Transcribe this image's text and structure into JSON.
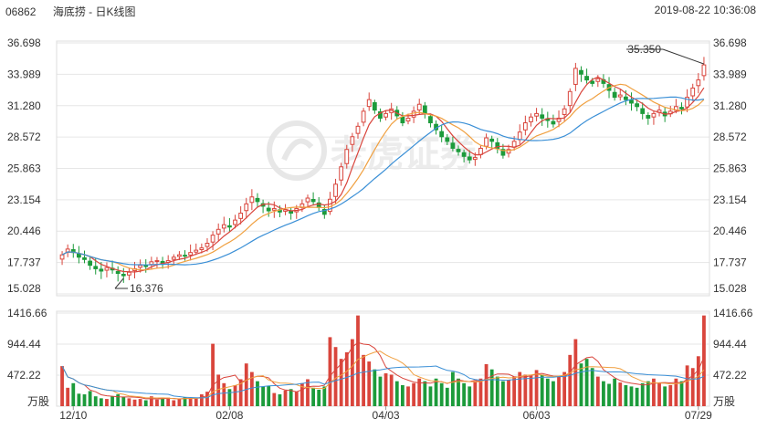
{
  "header": {
    "code": "06862",
    "title": "海底捞 - 日K线图",
    "datetime": "2019-08-22 10:36:08"
  },
  "watermark": {
    "text": "老虎证券"
  },
  "colors": {
    "up": "#d9453c",
    "down": "#1c9b3b",
    "ma_fast": "#d9453c",
    "ma_mid": "#f0a040",
    "ma_slow": "#3a8fd6",
    "grid": "#e6e6e6"
  },
  "chart_data": [
    {
      "type": "candlestick",
      "panel": "price",
      "y_ticks": [
        "36.698",
        "33.989",
        "31.280",
        "28.572",
        "25.863",
        "23.154",
        "20.446",
        "17.737",
        "15.028"
      ],
      "ylim": [
        15.028,
        36.698
      ],
      "x_ticks": [
        "12/10",
        "02/08",
        "04/03",
        "06/03",
        "07/29"
      ],
      "annotations": [
        {
          "label": "35.350",
          "value": 35.35,
          "kind": "high"
        },
        {
          "label": "16.376",
          "value": 16.376,
          "kind": "low"
        }
      ],
      "closes": [
        18.4,
        18.9,
        18.6,
        18.2,
        18.0,
        17.5,
        17.2,
        17.0,
        17.3,
        17.1,
        16.8,
        16.6,
        16.9,
        17.2,
        17.5,
        17.4,
        17.8,
        17.9,
        17.7,
        17.9,
        18.2,
        18.4,
        18.3,
        18.6,
        18.8,
        19.0,
        19.4,
        20.1,
        20.6,
        21.0,
        20.8,
        21.4,
        22.0,
        22.8,
        23.4,
        23.0,
        22.6,
        22.2,
        22.4,
        22.1,
        22.3,
        22.0,
        22.4,
        22.8,
        23.3,
        23.0,
        22.5,
        21.9,
        23.2,
        24.5,
        26.0,
        27.5,
        28.6,
        29.5,
        30.8,
        31.8,
        30.9,
        30.2,
        30.6,
        31.0,
        30.4,
        29.8,
        30.2,
        30.8,
        31.4,
        30.6,
        29.8,
        29.2,
        28.6,
        28.2,
        27.6,
        27.3,
        26.9,
        26.6,
        26.8,
        27.6,
        28.5,
        28.2,
        27.6,
        27.0,
        27.5,
        28.2,
        29.0,
        29.8,
        30.3,
        30.6,
        30.2,
        30.0,
        29.7,
        30.2,
        31.0,
        32.5,
        34.5,
        34.0,
        33.5,
        33.2,
        33.6,
        33.2,
        32.6,
        32.0,
        32.2,
        31.8,
        31.5,
        31.2,
        30.6,
        30.2,
        30.6,
        30.9,
        30.4,
        30.8,
        31.2,
        31.0,
        32.0,
        32.8,
        33.5,
        34.8
      ],
      "volume": {
        "y_ticks": [
          "1416.66",
          "944.44",
          "472.22"
        ],
        "unit": "万股",
        "ylim": [
          0,
          1416.66
        ],
        "values": [
          610,
          280,
          350,
          190,
          180,
          230,
          150,
          120,
          110,
          150,
          180,
          140,
          120,
          100,
          110,
          90,
          150,
          100,
          120,
          130,
          90,
          110,
          140,
          120,
          130,
          180,
          220,
          950,
          480,
          350,
          260,
          320,
          410,
          650,
          520,
          380,
          300,
          310,
          200,
          180,
          240,
          260,
          220,
          350,
          410,
          280,
          250,
          300,
          1050,
          900,
          720,
          820,
          1020,
          1380,
          780,
          680,
          560,
          450,
          500,
          480,
          380,
          320,
          300,
          350,
          420,
          380,
          300,
          420,
          350,
          280,
          520,
          420,
          350,
          300,
          380,
          420,
          640,
          560,
          450,
          380,
          400,
          450,
          520,
          480,
          460,
          550,
          480,
          420,
          380,
          450,
          520,
          780,
          1020,
          650,
          720,
          580,
          450,
          380,
          340,
          420,
          360,
          320,
          300,
          280,
          350,
          380,
          420,
          350,
          300,
          320,
          420,
          380,
          620,
          580,
          760,
          1380
        ]
      }
    }
  ]
}
